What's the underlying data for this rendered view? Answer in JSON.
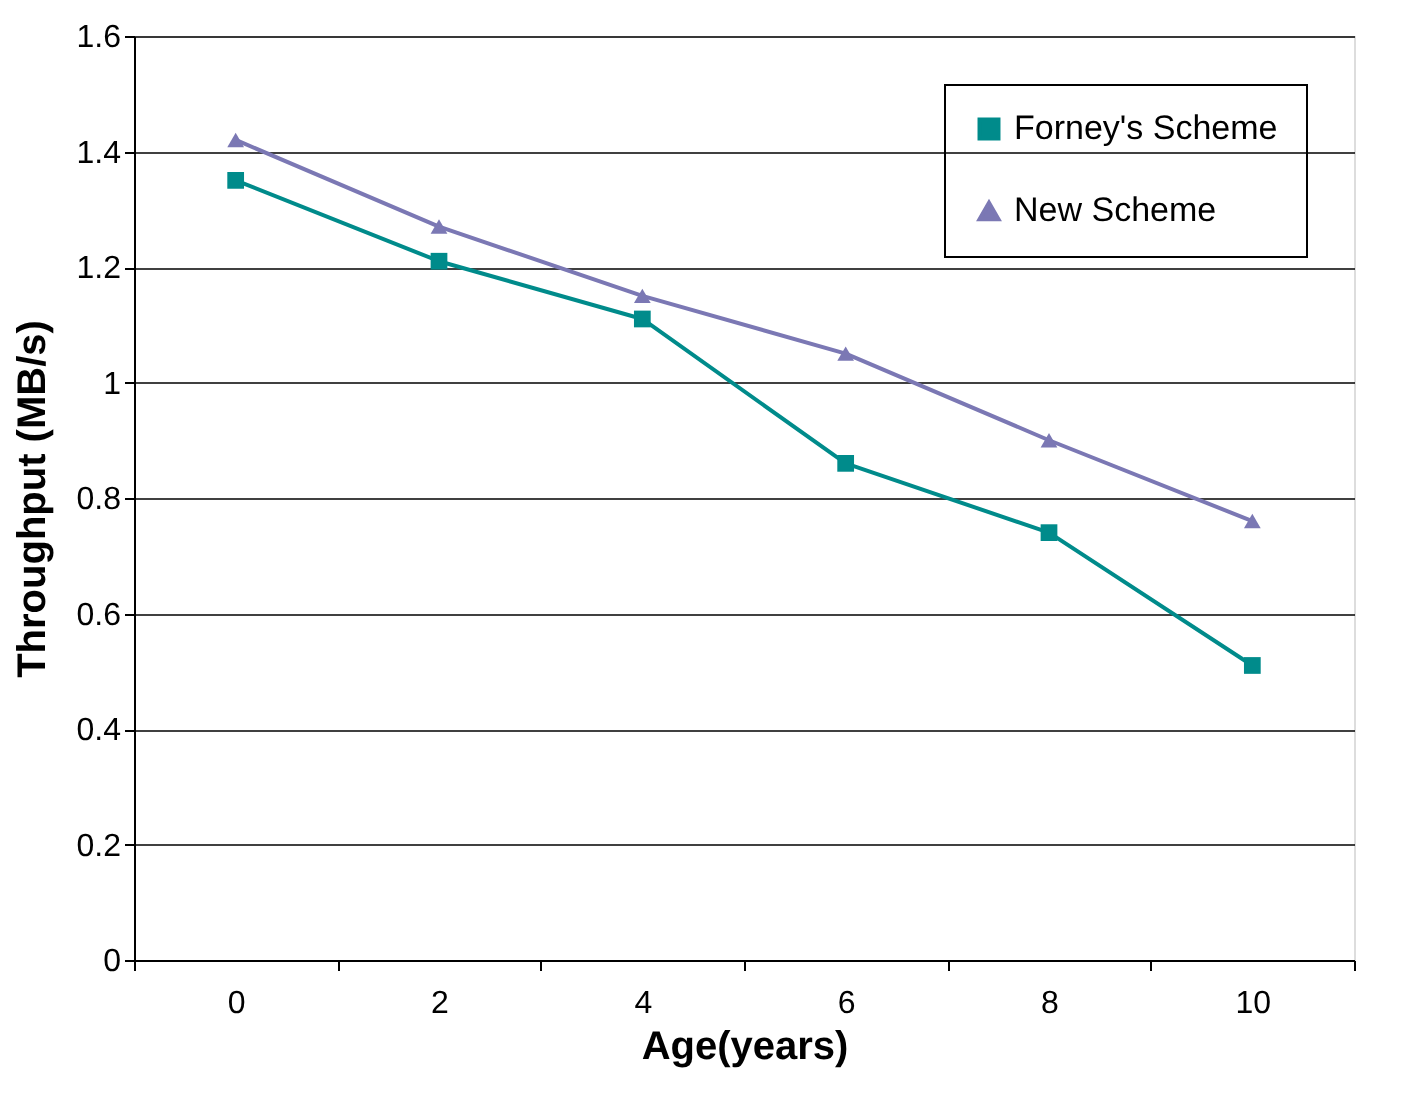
{
  "chart_data": {
    "type": "line",
    "xlabel": "Age(years)",
    "ylabel": "Throughput (MB/s)",
    "categories": [
      "0",
      "2",
      "4",
      "6",
      "8",
      "10"
    ],
    "series": [
      {
        "name": "Forney's Scheme",
        "color": "#008b8b",
        "marker": "square",
        "values": [
          1.35,
          1.21,
          1.11,
          0.86,
          0.74,
          0.51
        ]
      },
      {
        "name": "New Scheme",
        "color": "#7b78b4",
        "marker": "triangle",
        "values": [
          1.42,
          1.27,
          1.15,
          1.05,
          0.9,
          0.76
        ]
      }
    ],
    "ylim": [
      0,
      1.6
    ],
    "yticks": [
      0,
      0.2,
      0.4,
      0.6,
      0.8,
      1,
      1.2,
      1.4,
      1.6
    ],
    "grid": "y",
    "legend": "top right",
    "line_style": "solid"
  }
}
